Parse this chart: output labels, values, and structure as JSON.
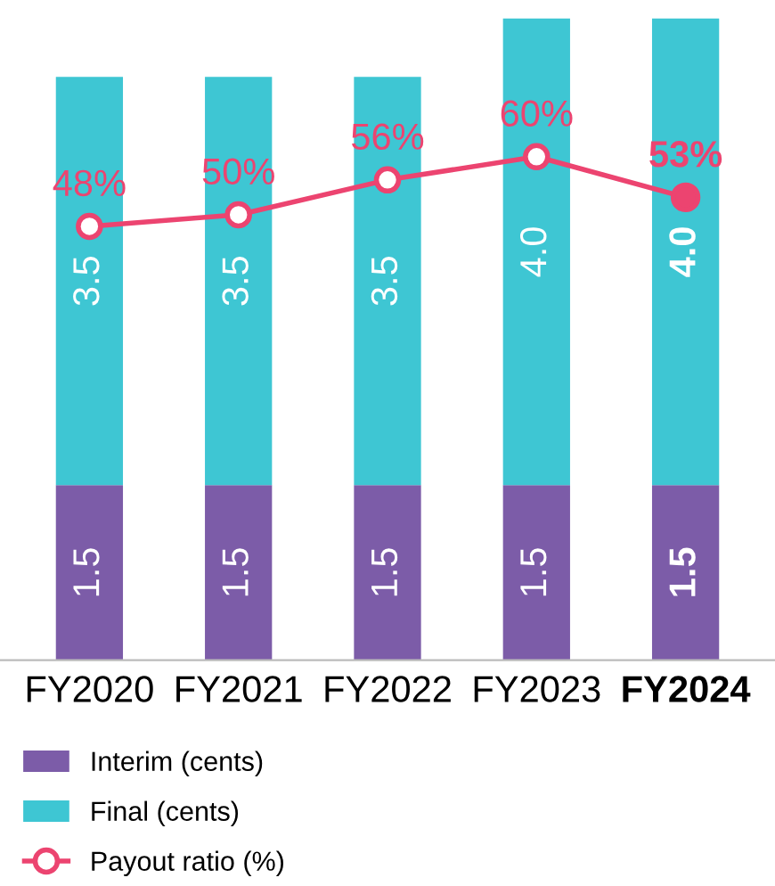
{
  "chart_data": {
    "type": "bar",
    "stacked": true,
    "categories": [
      "FY2020",
      "FY2021",
      "FY2022",
      "FY2023",
      "FY2024"
    ],
    "series": [
      {
        "name": "Interim (cents)",
        "color": "#7c5ca8",
        "values": [
          1.5,
          1.5,
          1.5,
          1.5,
          1.5
        ],
        "value_labels": [
          "1.5",
          "1.5",
          "1.5",
          "1.5",
          "1.5"
        ]
      },
      {
        "name": "Final (cents)",
        "color": "#3ec6d3",
        "values": [
          3.5,
          3.5,
          3.5,
          4.0,
          4.0
        ],
        "value_labels": [
          "3.5",
          "3.5",
          "3.5",
          "4.0",
          "4.0"
        ]
      },
      {
        "name": "Payout ratio (%)",
        "type": "line",
        "axis": "y2",
        "color": "#ec4470",
        "values": [
          48,
          50,
          56,
          60,
          53
        ],
        "value_labels": [
          "48%",
          "50%",
          "56%",
          "60%",
          "53%"
        ]
      }
    ],
    "marker": "circle",
    "line_style": "solid",
    "legend": "bottom",
    "grid": false,
    "tick_labels": "x"
  }
}
